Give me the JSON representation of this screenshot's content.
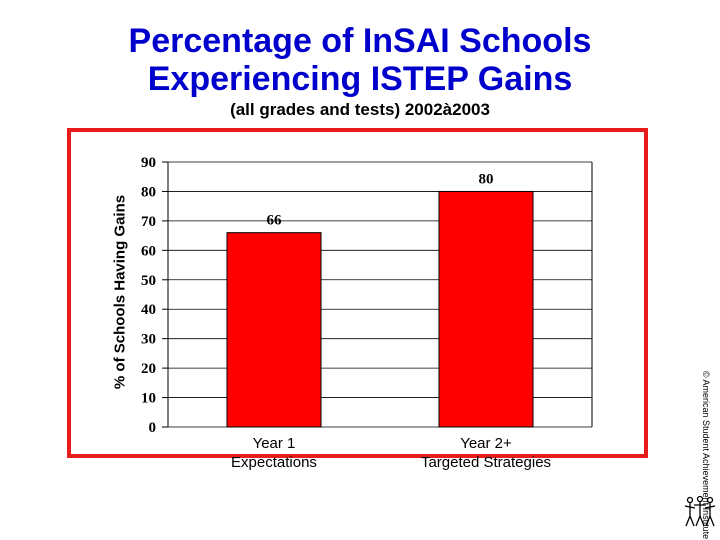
{
  "header": {
    "title_line1": "Percentage of InSAI Schools",
    "title_line2": "Experiencing ISTEP Gains",
    "subtitle": "(all grades and tests) 2002à2003"
  },
  "side_note": "© American Student Achievement Institute",
  "colors": {
    "title": "#0000cc",
    "bar": "#ff0000",
    "frame": "#e81c1c"
  },
  "chart_data": {
    "type": "bar",
    "categories": [
      "Year 1\nExpectations",
      "Year 2+\nTargeted Strategies"
    ],
    "values": [
      66,
      80
    ],
    "data_labels": [
      "66",
      "80"
    ],
    "ylabel": "% of Schools Having Gains",
    "ylim": [
      0,
      90
    ],
    "yticks": [
      0,
      10,
      20,
      30,
      40,
      50,
      60,
      70,
      80,
      90
    ],
    "grid": true,
    "legend": "none"
  }
}
